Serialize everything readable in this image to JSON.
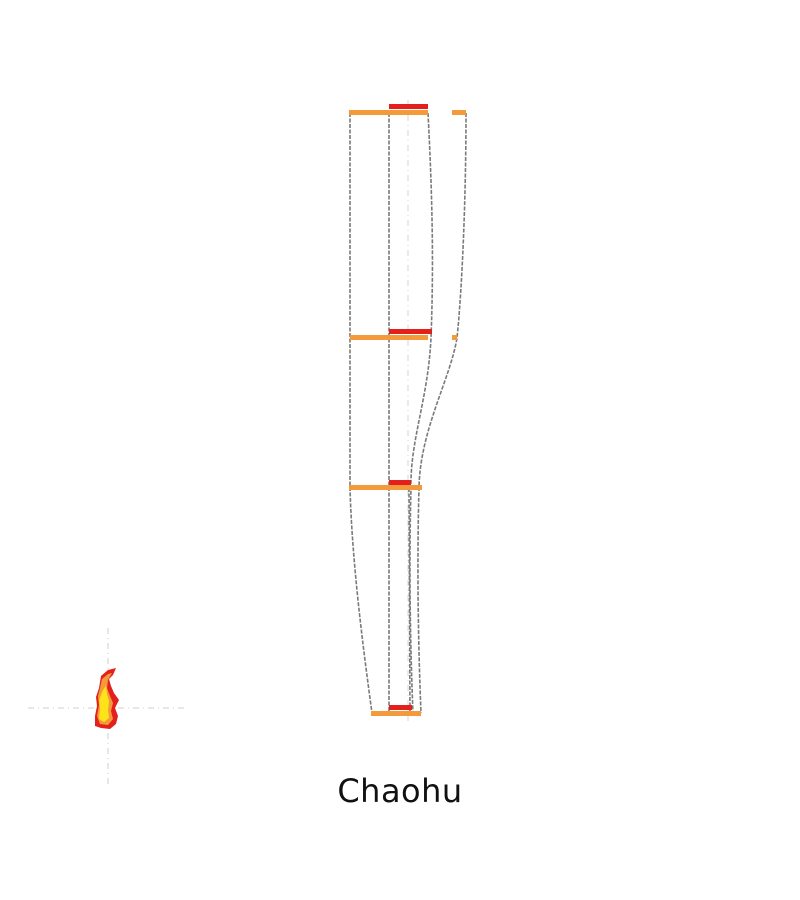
{
  "title": "Chaohu",
  "colors": {
    "orange_band": "#F59A3A",
    "red_band": "#E4201C",
    "outline": "#7A7A7A",
    "guide": "#CFCFCF",
    "map_yellow": "#FFE31A",
    "map_orange": "#F59A3A",
    "map_red": "#E4201C"
  }
}
